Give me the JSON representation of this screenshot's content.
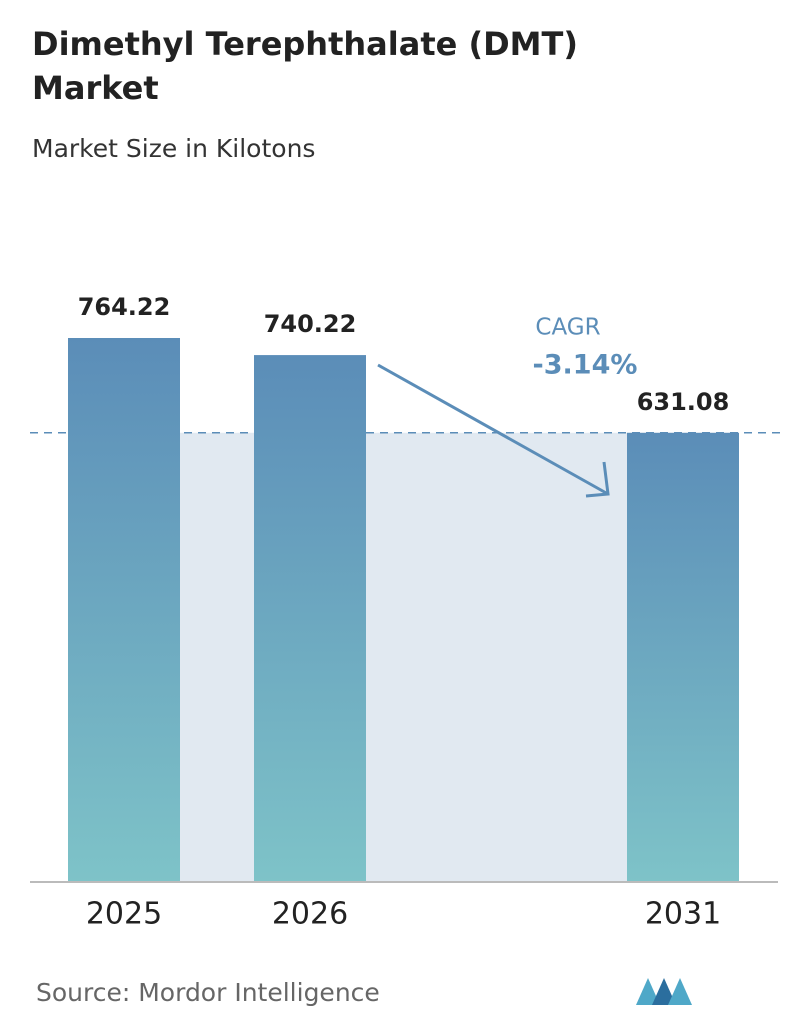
{
  "chart_data": {
    "type": "bar",
    "title": "Dimethyl Terephthalate (DMT) Market",
    "subtitle": "Market Size in Kilotons",
    "categories": [
      "2025",
      "2026",
      "2031"
    ],
    "values": [
      764.22,
      740.22,
      631.08
    ],
    "color_top": "#5b8db8",
    "color_bottom": "#7ec3c8",
    "cagr_label": "CAGR",
    "cagr_value": "-3.14%",
    "source": "Source: Mordor Intelligence"
  }
}
